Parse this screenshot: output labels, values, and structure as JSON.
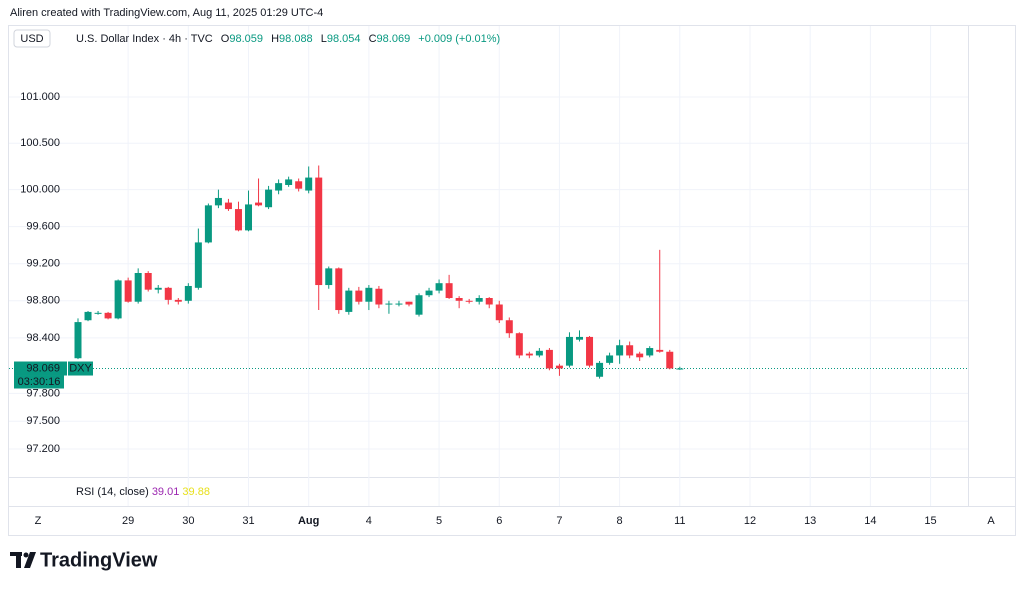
{
  "header": {
    "credit": "Aliren created with TradingView.com, Aug 11, 2025 01:29 UTC-4",
    "currency": "USD",
    "symbol": "U.S. Dollar Index · 4h · TVC",
    "ohlc_letters": [
      "O",
      "H",
      "L",
      "C"
    ],
    "change": "+0.009 (+0.01%)"
  },
  "chart_data": {
    "type": "candlestick",
    "categories": [
      null,
      null,
      null,
      null,
      null,
      "29",
      null,
      null,
      null,
      null,
      null,
      "30",
      null,
      null,
      null,
      null,
      null,
      "31",
      null,
      null,
      null,
      null,
      null,
      "Aug",
      null,
      null,
      null,
      null,
      null,
      "4",
      null,
      null,
      null,
      null,
      null,
      null,
      "5",
      null,
      null,
      null,
      null,
      null,
      "6",
      null,
      null,
      null,
      null,
      null,
      "7",
      null,
      null,
      null,
      null,
      null,
      "8",
      null,
      null,
      null,
      null,
      null,
      "11",
      null,
      null,
      null,
      null,
      null,
      null,
      "12",
      null,
      null,
      null,
      null,
      null,
      "13",
      null,
      null,
      null,
      null,
      null,
      "14",
      null,
      null,
      null,
      null,
      null,
      "15"
    ],
    "open": [
      98.18,
      98.59,
      98.66,
      98.67,
      98.61,
      99.02,
      98.79,
      99.1,
      98.92,
      98.94,
      98.81,
      98.8,
      98.94,
      99.43,
      99.83,
      99.86,
      99.79,
      99.56,
      99.86,
      99.81,
      99.99,
      100.05,
      100.09,
      99.99,
      100.13,
      98.97,
      99.15,
      98.68,
      98.91,
      98.79,
      98.93,
      98.76,
      98.77,
      98.79,
      98.65,
      98.86,
      98.91,
      98.99,
      98.83,
      98.8,
      98.79,
      98.83,
      98.76,
      98.59,
      98.45,
      98.23,
      98.21,
      98.27,
      98.1,
      98.1,
      98.38,
      98.41,
      97.98,
      98.13,
      98.21,
      98.32,
      98.23,
      98.21,
      98.27,
      98.25,
      98.059,
      null,
      null,
      null,
      null,
      null,
      null,
      null,
      null,
      null,
      null,
      null,
      null,
      null,
      null,
      null,
      null,
      null,
      null,
      null,
      null,
      null,
      null,
      null,
      null,
      null
    ],
    "high": [
      98.61,
      98.69,
      98.69,
      98.68,
      99.03,
      99.05,
      99.15,
      99.12,
      98.97,
      98.95,
      98.83,
      98.99,
      99.58,
      99.85,
      100.0,
      99.9,
      99.87,
      99.99,
      100.12,
      100.04,
      100.11,
      100.14,
      100.12,
      100.25,
      100.26,
      99.17,
      99.16,
      98.94,
      98.95,
      98.97,
      98.96,
      98.8,
      98.8,
      98.79,
      98.88,
      98.94,
      99.03,
      99.08,
      98.85,
      98.82,
      98.86,
      98.84,
      98.8,
      98.62,
      98.46,
      98.25,
      98.29,
      98.29,
      98.12,
      98.46,
      98.48,
      98.42,
      98.15,
      98.24,
      98.38,
      98.36,
      98.25,
      98.31,
      99.35,
      98.27,
      98.088,
      null,
      null,
      null,
      null,
      null,
      null,
      null,
      null,
      null,
      null,
      null,
      null,
      null,
      null,
      null,
      null,
      null,
      null,
      null,
      null,
      null,
      null,
      null,
      null,
      null
    ],
    "low": [
      98.17,
      98.58,
      98.65,
      98.6,
      98.6,
      98.78,
      98.77,
      98.9,
      98.88,
      98.76,
      98.76,
      98.77,
      98.92,
      99.42,
      99.8,
      99.77,
      99.55,
      99.55,
      99.82,
      99.79,
      99.95,
      100.03,
      99.98,
      99.96,
      98.7,
      98.93,
      98.66,
      98.65,
      98.76,
      98.7,
      98.72,
      98.66,
      98.74,
      98.74,
      98.63,
      98.84,
      98.88,
      98.82,
      98.72,
      98.77,
      98.76,
      98.72,
      98.56,
      98.4,
      98.18,
      98.18,
      98.19,
      98.05,
      97.99,
      98.08,
      98.36,
      98.08,
      97.96,
      98.11,
      98.12,
      98.18,
      98.15,
      98.19,
      98.24,
      98.06,
      98.054,
      null,
      null,
      null,
      null,
      null,
      null,
      null,
      null,
      null,
      null,
      null,
      null,
      null,
      null,
      null,
      null,
      null,
      null,
      null,
      null,
      null,
      null,
      null,
      null,
      null
    ],
    "close": [
      98.57,
      98.68,
      98.67,
      98.61,
      99.02,
      98.79,
      99.1,
      98.92,
      98.94,
      98.81,
      98.79,
      98.96,
      99.43,
      99.83,
      99.91,
      99.79,
      99.56,
      99.84,
      99.83,
      100.0,
      100.07,
      100.11,
      100.01,
      100.13,
      98.97,
      99.15,
      98.7,
      98.91,
      98.79,
      98.94,
      98.76,
      98.77,
      98.77,
      98.76,
      98.86,
      98.91,
      98.99,
      98.83,
      98.8,
      98.79,
      98.83,
      98.76,
      98.59,
      98.45,
      98.21,
      98.21,
      98.26,
      98.07,
      98.07,
      98.41,
      98.41,
      98.1,
      98.13,
      98.21,
      98.32,
      98.21,
      98.19,
      98.29,
      98.25,
      98.07,
      98.069,
      null,
      null,
      null,
      null,
      null,
      null,
      null,
      null,
      null,
      null,
      null,
      null,
      null,
      null,
      null,
      null,
      null,
      null,
      null,
      null,
      null,
      null,
      null,
      null,
      null
    ],
    "up_color": "#089981",
    "down_color": "#f23645",
    "ylim": [
      96.898,
      101.561
    ],
    "yticks": [
      {
        "value": 101,
        "label": "101.000"
      },
      {
        "value": 100.5,
        "label": "100.500"
      },
      {
        "value": 100,
        "label": "100.000"
      },
      {
        "value": 99.6,
        "label": "99.600"
      },
      {
        "value": 99.2,
        "label": "99.200"
      },
      {
        "value": 98.8,
        "label": "98.800"
      },
      {
        "value": 98.4,
        "label": "98.400"
      },
      {
        "value": 97.8,
        "label": "97.800"
      },
      {
        "value": 97.5,
        "label": "97.500"
      },
      {
        "value": 97.2,
        "label": "97.200"
      }
    ],
    "grid": true,
    "last_price_tag": "DXY",
    "countdown": "03:30:16"
  },
  "rsi": {
    "label": "RSI (14, close)",
    "values": [
      39.01,
      39.88
    ]
  },
  "toolbar": {
    "left": "Z",
    "right": "A"
  },
  "brand": "TradingView"
}
